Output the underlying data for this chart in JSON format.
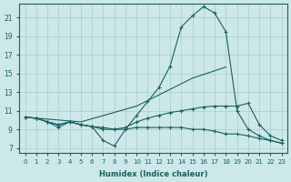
{
  "xlabel": "Humidex (Indice chaleur)",
  "background_color": "#cce8e8",
  "grid_color": "#aacccc",
  "line_color": "#1a6060",
  "xlim": [
    -0.5,
    23.5
  ],
  "ylim": [
    6.5,
    22.5
  ],
  "xticks": [
    0,
    1,
    2,
    3,
    4,
    5,
    6,
    7,
    8,
    9,
    10,
    11,
    12,
    13,
    14,
    15,
    16,
    17,
    18,
    19,
    20,
    21,
    22,
    23
  ],
  "yticks": [
    7,
    9,
    11,
    13,
    15,
    17,
    19,
    21
  ],
  "ytick_labels": [
    "7",
    "9",
    "11",
    "13",
    "15",
    "17",
    "19",
    "21"
  ],
  "lines": [
    {
      "x": [
        0,
        1,
        2,
        3,
        4,
        5,
        6,
        7,
        8,
        9,
        10,
        11,
        12,
        13,
        14,
        15,
        16,
        17,
        18,
        19,
        20,
        21,
        22,
        23
      ],
      "y": [
        10.3,
        10.2,
        9.8,
        9.5,
        9.8,
        9.5,
        9.3,
        9.2,
        9.0,
        9.0,
        10.5,
        12.0,
        13.5,
        15.8,
        20.0,
        21.2,
        22.2,
        21.5,
        19.5,
        11.0,
        9.0,
        8.3,
        7.8,
        7.5
      ],
      "marker": true
    },
    {
      "x": [
        0,
        5,
        10,
        15,
        18
      ],
      "y": [
        10.3,
        9.8,
        11.5,
        14.5,
        15.7
      ],
      "marker": false
    },
    {
      "x": [
        0,
        1,
        2,
        3,
        4,
        5,
        6,
        7,
        8,
        9,
        10,
        11,
        12,
        13,
        14,
        15,
        16,
        17,
        18,
        19,
        20,
        21,
        22,
        23
      ],
      "y": [
        10.3,
        10.2,
        9.8,
        9.5,
        9.8,
        9.5,
        9.3,
        9.0,
        9.0,
        9.2,
        9.8,
        10.2,
        10.5,
        10.8,
        11.0,
        11.2,
        11.4,
        11.5,
        11.5,
        11.5,
        11.8,
        9.5,
        8.3,
        7.8
      ],
      "marker": true
    },
    {
      "x": [
        0,
        1,
        2,
        3,
        4,
        5,
        6,
        7,
        8,
        9,
        10,
        11,
        12,
        13,
        14,
        15,
        16,
        17,
        18,
        19,
        20,
        21,
        22,
        23
      ],
      "y": [
        10.3,
        10.2,
        9.8,
        9.2,
        9.8,
        9.5,
        9.3,
        7.8,
        7.2,
        9.0,
        9.2,
        9.2,
        9.2,
        9.2,
        9.2,
        9.0,
        9.0,
        8.8,
        8.5,
        8.5,
        8.3,
        8.0,
        7.8,
        7.5
      ],
      "marker": true
    }
  ]
}
